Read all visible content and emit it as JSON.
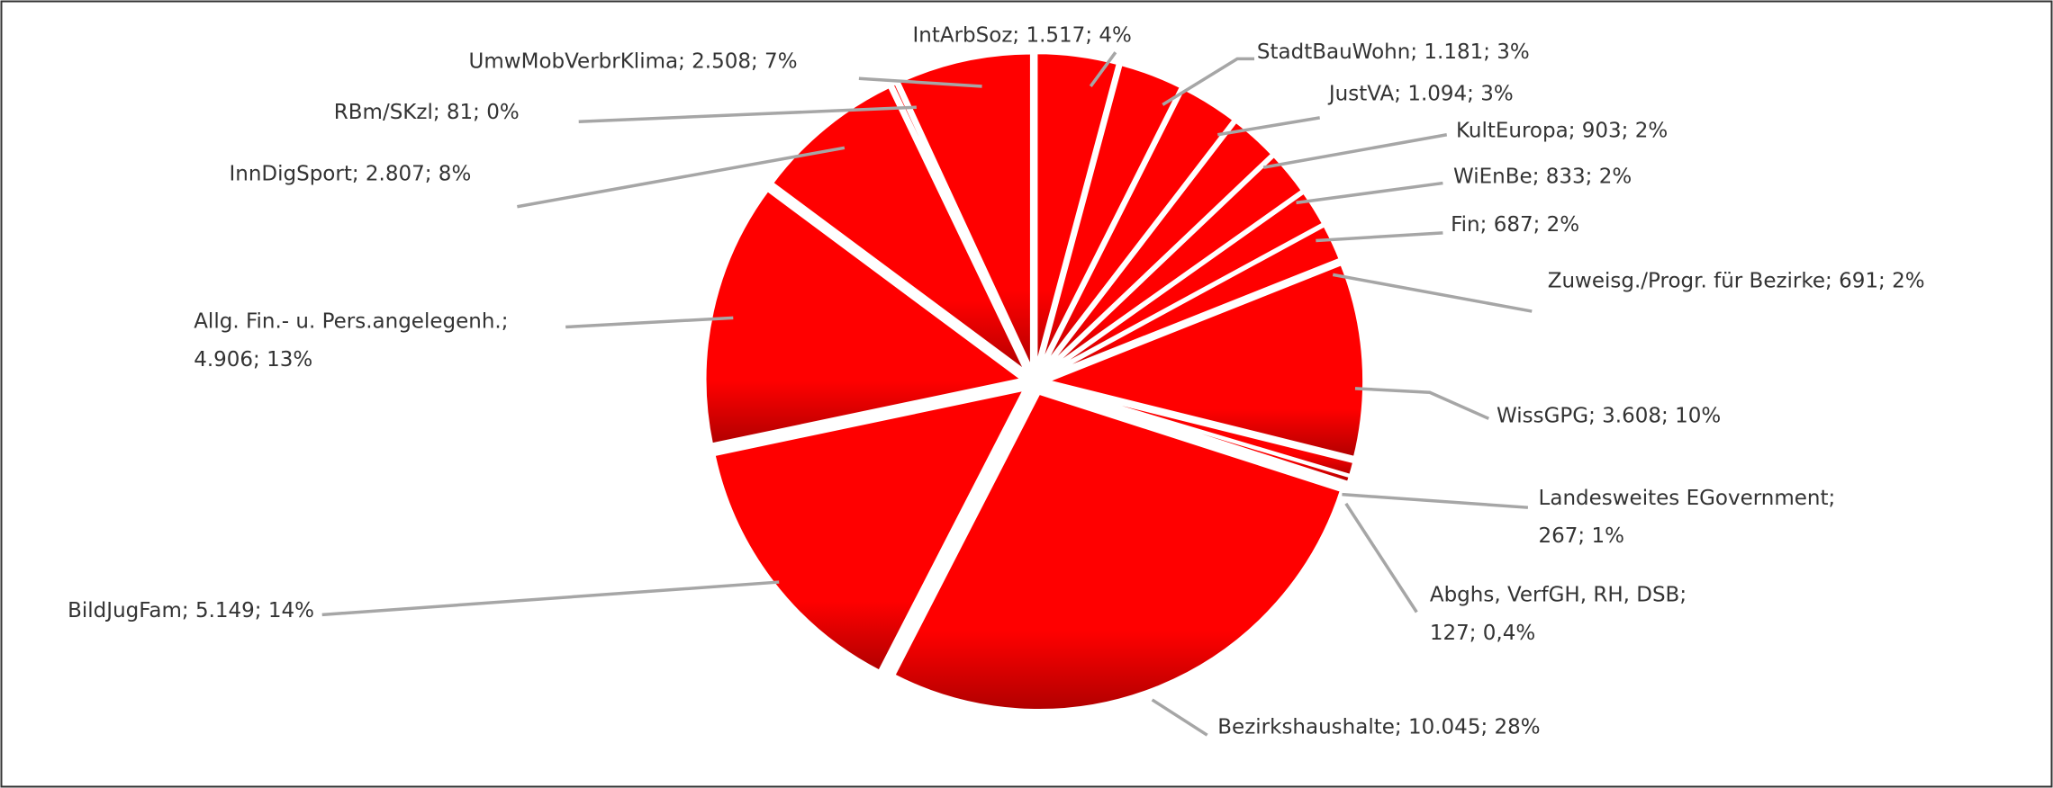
{
  "chart_data": {
    "type": "pie",
    "color": "#ff0000",
    "categories": [
      "IntArbSoz",
      "StadtBauWohn",
      "JustVA",
      "KultEuropa",
      "WiEnBe",
      "Fin",
      "Zuweisg./Progr. für Bezirke",
      "WissGPG",
      "Landesweites EGovernment",
      "Abghs, VerfGH, RH, DSB",
      "Bezirkshaushalte",
      "BildJugFam",
      "Allg. Fin.- u. Pers.angelegenh.",
      "InnDigSport",
      "RBm/SKzl",
      "UmwMobVerbrKlima"
    ],
    "values": [
      1517,
      1181,
      1094,
      903,
      833,
      687,
      691,
      3608,
      267,
      127,
      10045,
      5149,
      4906,
      2807,
      81,
      2508
    ],
    "value_labels": [
      "1.517; 4%",
      "1.181; 3%",
      "1.094; 3%",
      "903; 2%",
      "833; 2%",
      "687; 2%",
      "691; 2%",
      "3.608; 10%",
      "267; 1%",
      "127; 0,4%",
      "10.045; 28%",
      "5.149; 14%",
      "4.906; 13%",
      "2.807; 8%",
      "81; 0%",
      "2.508; 7%"
    ]
  }
}
